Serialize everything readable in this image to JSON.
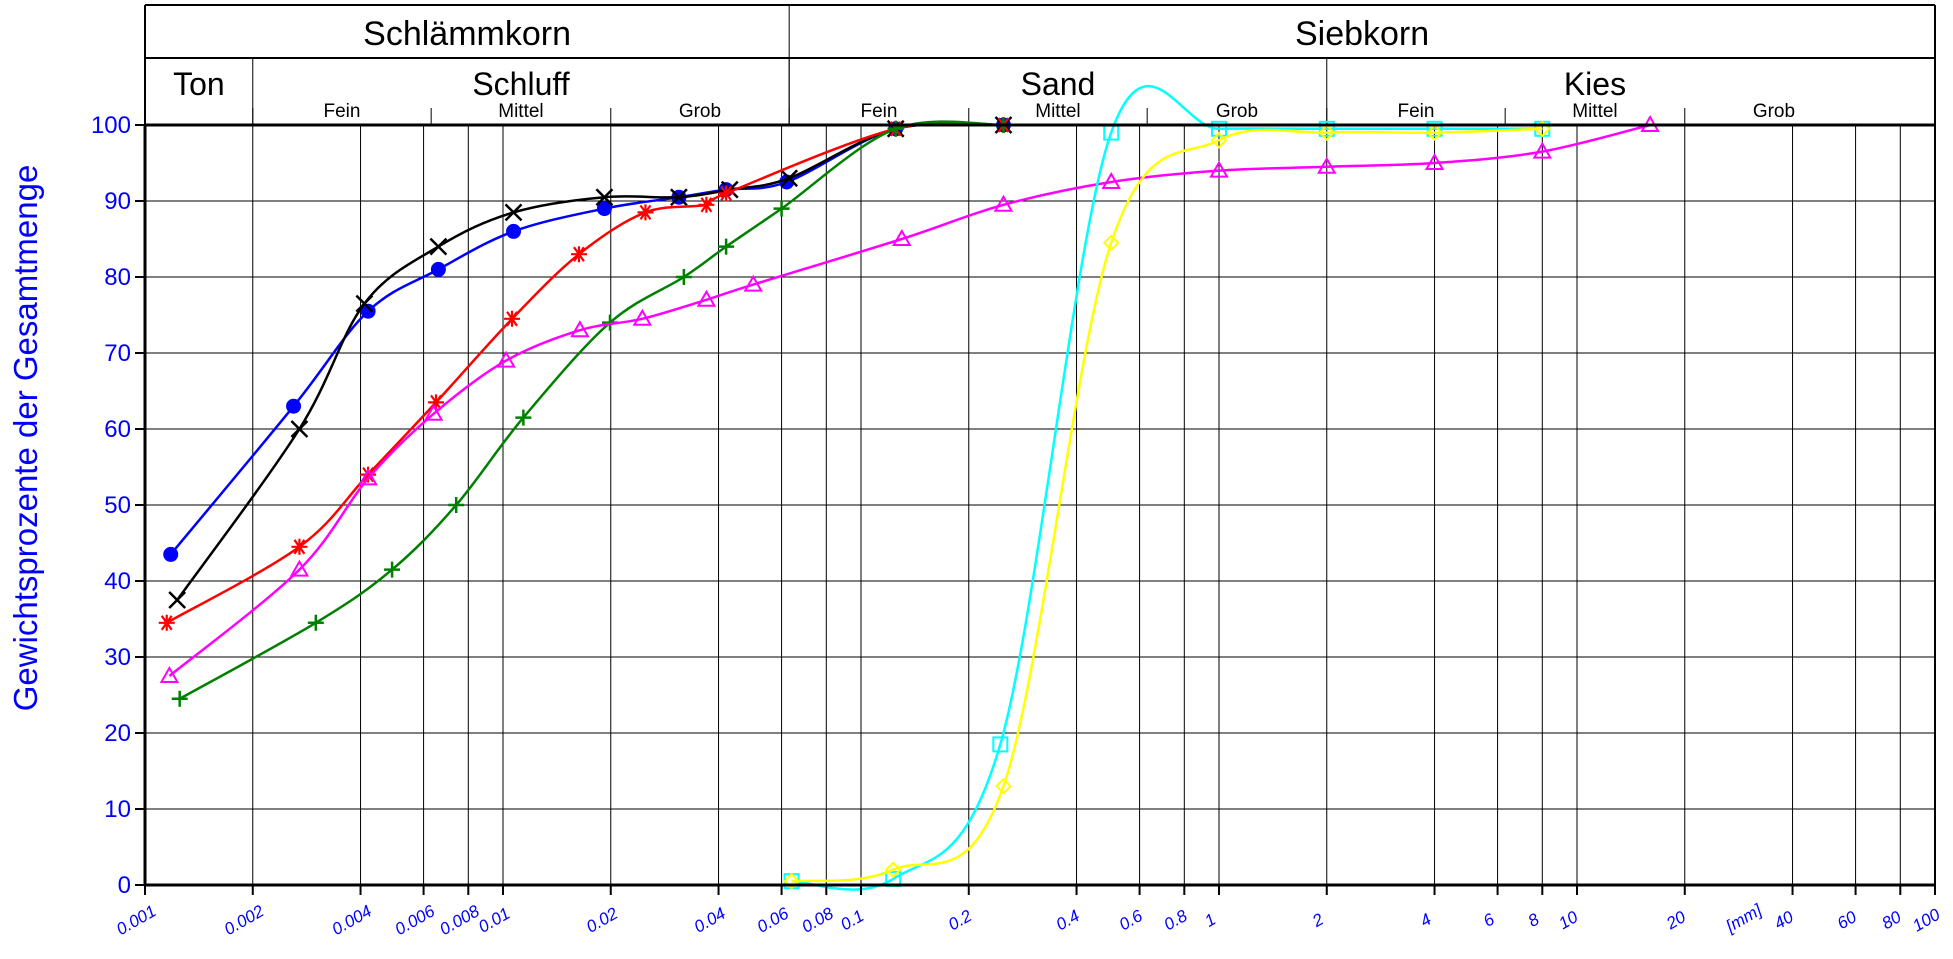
{
  "chart_data": {
    "type": "line",
    "title": "",
    "xlabel": "",
    "ylabel": "Gewichtsprozente der Gesamtmenge",
    "x_unit_label": "[mm]",
    "xscale": "log",
    "xlim": [
      0.001,
      100
    ],
    "ylim": [
      0,
      100
    ],
    "grid": true,
    "yticks": [
      "0",
      "10",
      "20",
      "30",
      "40",
      "50",
      "60",
      "70",
      "80",
      "90",
      "100"
    ],
    "xticks": [
      {
        "v": 0.001,
        "label": "0.001"
      },
      {
        "v": 0.002,
        "label": "0.002"
      },
      {
        "v": 0.004,
        "label": "0.004"
      },
      {
        "v": 0.006,
        "label": "0.006"
      },
      {
        "v": 0.008,
        "label": "0.008"
      },
      {
        "v": 0.01,
        "label": "0.01"
      },
      {
        "v": 0.02,
        "label": "0.02"
      },
      {
        "v": 0.04,
        "label": "0.04"
      },
      {
        "v": 0.06,
        "label": "0.06"
      },
      {
        "v": 0.08,
        "label": "0.08"
      },
      {
        "v": 0.1,
        "label": "0.1"
      },
      {
        "v": 0.2,
        "label": "0.2"
      },
      {
        "v": 0.4,
        "label": "0.4"
      },
      {
        "v": 0.6,
        "label": "0.6"
      },
      {
        "v": 0.8,
        "label": "0.8"
      },
      {
        "v": 1,
        "label": "1"
      },
      {
        "v": 2,
        "label": "2"
      },
      {
        "v": 4,
        "label": "4"
      },
      {
        "v": 6,
        "label": "6"
      },
      {
        "v": 8,
        "label": "8"
      },
      {
        "v": 10,
        "label": "10"
      },
      {
        "v": 20,
        "label": "20"
      },
      {
        "v": 40,
        "label": "40"
      },
      {
        "v": 60,
        "label": "60"
      },
      {
        "v": 80,
        "label": "80"
      },
      {
        "v": 100,
        "label": "100"
      }
    ],
    "header": {
      "row1": [
        {
          "label": "Schlämmkorn",
          "from": 0.001,
          "to": 0.063
        },
        {
          "label": "Siebkorn",
          "from": 0.063,
          "to": 100
        }
      ],
      "row2": [
        {
          "label": "Ton",
          "from": 0.001,
          "to": 0.002
        },
        {
          "label": "Schluff",
          "from": 0.002,
          "to": 0.063
        },
        {
          "label": "Sand",
          "from": 0.063,
          "to": 2
        },
        {
          "label": "Kies",
          "from": 2,
          "to": 63
        }
      ],
      "row3": [
        {
          "label": "Fein",
          "from": 0.002,
          "to": 0.0063
        },
        {
          "label": "Mittel",
          "from": 0.0063,
          "to": 0.02
        },
        {
          "label": "Grob",
          "from": 0.02,
          "to": 0.063
        },
        {
          "label": "Fein",
          "from": 0.063,
          "to": 0.2
        },
        {
          "label": "Mittel",
          "from": 0.2,
          "to": 0.63
        },
        {
          "label": "Grob",
          "from": 0.63,
          "to": 2
        },
        {
          "label": "Fein",
          "from": 2,
          "to": 6.3
        },
        {
          "label": "Mittel",
          "from": 6.3,
          "to": 20
        },
        {
          "label": "Grob",
          "from": 20,
          "to": 63
        }
      ]
    },
    "series": [
      {
        "color": "#0000ff",
        "marker": "circle",
        "x": [
          0.00118,
          0.0026,
          0.0042,
          0.0066,
          0.0107,
          0.0192,
          0.031,
          0.042,
          0.062,
          0.125,
          0.25
        ],
        "y": [
          43.5,
          63,
          75.5,
          81,
          86,
          89,
          90.5,
          91.5,
          92.5,
          99.5,
          100
        ]
      },
      {
        "color": "#000000",
        "marker": "x",
        "x": [
          0.00123,
          0.0027,
          0.0041,
          0.0066,
          0.0107,
          0.0192,
          0.031,
          0.043,
          0.063,
          0.125,
          0.25
        ],
        "y": [
          37.5,
          60,
          76.5,
          84,
          88.5,
          90.5,
          90.5,
          91.5,
          93,
          99.5,
          100
        ]
      },
      {
        "color": "#ff0000",
        "marker": "asterisk",
        "x": [
          0.00115,
          0.0027,
          0.0042,
          0.0065,
          0.0106,
          0.0163,
          0.025,
          0.037,
          0.042,
          0.125,
          0.25
        ],
        "y": [
          34.5,
          44.5,
          54,
          63.5,
          74.5,
          83,
          88.5,
          89.5,
          91,
          99.5,
          100
        ]
      },
      {
        "color": "#008000",
        "marker": "plus",
        "x": [
          0.00125,
          0.003,
          0.0049,
          0.0074,
          0.0114,
          0.0199,
          0.032,
          0.042,
          0.06,
          0.125,
          0.25
        ],
        "y": [
          24.5,
          34.5,
          41.5,
          50,
          61.5,
          74,
          80,
          84,
          89,
          99.5,
          100
        ]
      },
      {
        "color": "#ff00ff",
        "marker": "triangle",
        "x": [
          0.00117,
          0.0027,
          0.0042,
          0.0064,
          0.0102,
          0.0164,
          0.0245,
          0.037,
          0.05,
          0.13,
          0.25,
          0.5,
          1,
          2,
          4,
          8,
          16
        ],
        "y": [
          27.5,
          41.5,
          53.5,
          62,
          69,
          73,
          74.5,
          77,
          79,
          85,
          89.5,
          92.5,
          94,
          94.5,
          95,
          96.5,
          100
        ]
      },
      {
        "color": "#00ffff",
        "marker": "square",
        "x": [
          0.064,
          0.123,
          0.245,
          0.5,
          1,
          2,
          4,
          8
        ],
        "y": [
          0.5,
          0.8,
          18.5,
          99,
          99.5,
          99.5,
          99.5,
          99.5
        ]
      },
      {
        "color": "#ffff00",
        "marker": "diamond",
        "x": [
          0.064,
          0.123,
          0.25,
          0.5,
          1,
          2,
          4,
          8
        ],
        "y": [
          0.5,
          2,
          13,
          84.5,
          98,
          99,
          99,
          99.5
        ]
      }
    ]
  }
}
